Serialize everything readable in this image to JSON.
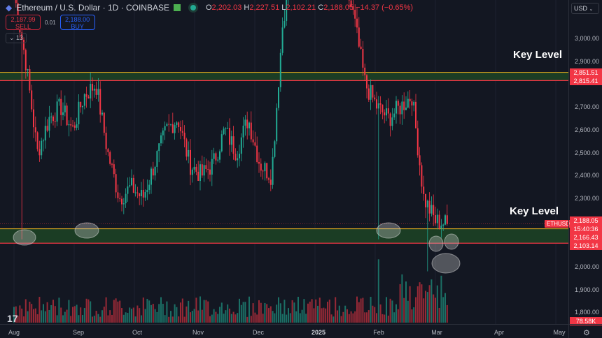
{
  "header": {
    "symbol": "Ethereum / U.S. Dollar · 1D · COINBASE",
    "ohlc": {
      "o_label": "O",
      "o": "2,202.03",
      "h_label": "H",
      "h": "2,227.51",
      "l_label": "L",
      "l": "2,102.21",
      "c_label": "C",
      "c": "2,188.05",
      "change": "−14.37 (−0.65%)"
    }
  },
  "trade": {
    "sell_price": "2,187.99",
    "sell_label": "SELL",
    "spread": "0.01",
    "buy_price": "2,188.00",
    "buy_label": "BUY"
  },
  "indicators_count": "13",
  "annotations": {
    "key_level_top": "Key Level",
    "key_level_bottom": "Key Level"
  },
  "price_axis": {
    "currency": "USD",
    "ticks": [
      "3,000.00",
      "2,900.00",
      "2,700.00",
      "2,600.00",
      "2,500.00",
      "2,400.00",
      "2,300.00",
      "2,000.00",
      "1,900.00",
      "1,800.00"
    ],
    "labels": {
      "upper_zone_top": "2,851.51",
      "upper_zone_bottom": "2,815.41",
      "last_price": "2,188.05",
      "countdown": "15:40:36",
      "lower_zone_top": "2,166.43",
      "lower_zone_bottom": "2,103.14",
      "volume": "78.58K"
    },
    "symbol_tag": "ETHUSD"
  },
  "time_axis": [
    "Aug",
    "Sep",
    "Oct",
    "Nov",
    "Dec",
    "2025",
    "Feb",
    "Mar",
    "Apr",
    "May"
  ],
  "colors": {
    "up": "#22ab94",
    "down": "#f23645",
    "zone": "#1b3d24",
    "zone_border_top": "#d6a21f",
    "zone_border_bottom": "#f23645",
    "background": "#131722"
  },
  "chart_data": {
    "type": "candlestick",
    "symbol": "ETHUSD",
    "interval": "1D",
    "price_levels": [
      2851.51,
      2815.41,
      2166.43,
      2103.14
    ],
    "close_path": [
      [
        "Aug",
        3200
      ],
      [
        "Aug",
        2900
      ],
      [
        "Aug",
        2500
      ],
      [
        "Aug",
        2650
      ],
      [
        "Aug",
        2700
      ],
      [
        "Aug",
        2600
      ],
      [
        "Aug",
        2750
      ],
      [
        "Aug",
        2800
      ],
      [
        "Sep",
        2500
      ],
      [
        "Sep",
        2300
      ],
      [
        "Sep",
        2350
      ],
      [
        "Sep",
        2300
      ],
      [
        "Sep",
        2450
      ],
      [
        "Sep",
        2600
      ],
      [
        "Sep",
        2650
      ],
      [
        "Oct",
        2450
      ],
      [
        "Oct",
        2400
      ],
      [
        "Oct",
        2450
      ],
      [
        "Oct",
        2600
      ],
      [
        "Oct",
        2500
      ],
      [
        "Oct",
        2650
      ],
      [
        "Nov",
        2450
      ],
      [
        "Nov",
        2400
      ],
      [
        "Nov",
        3100
      ],
      [
        "Nov",
        3300
      ],
      [
        "Dec",
        3800
      ],
      [
        "Dec",
        3700
      ],
      [
        "2025",
        3500
      ],
      [
        "2025",
        3300
      ],
      [
        "Feb",
        3100
      ],
      [
        "Feb",
        2800
      ],
      [
        "Feb",
        2700
      ],
      [
        "Feb",
        2650
      ],
      [
        "Feb",
        2700
      ],
      [
        "Feb",
        2750
      ],
      [
        "Mar",
        2300
      ],
      [
        "Mar",
        2200
      ],
      [
        "Mar",
        2188.05
      ]
    ]
  }
}
